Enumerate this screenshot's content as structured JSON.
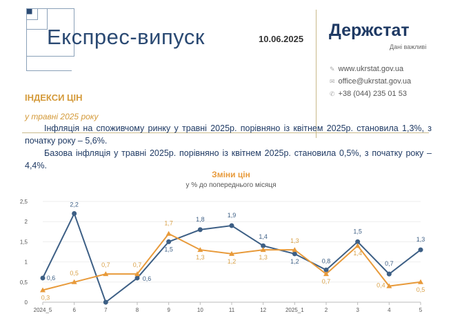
{
  "header": {
    "title": "Експрес-випуск",
    "date": "10.06.2025",
    "brand": "Держстат",
    "tagline": "Дані важливі",
    "section": "ІНДЕКСИ ЦІН",
    "period": "у травні 2025 року",
    "contacts": [
      {
        "icon": "link-icon",
        "text": "www.ukrstat.gov.ua"
      },
      {
        "icon": "mail-icon",
        "text": "office@ukrstat.gov.ua"
      },
      {
        "icon": "phone-icon",
        "text": "+38 (044) 235 01 53"
      }
    ]
  },
  "body": {
    "p1": "Інфляція на споживчому ринку у травні 2025р. порівняно із квітнем 2025р. становила 1,3%, з початку року – 5,6%.",
    "p2": "Базова інфляція у травні 2025р. порівняно із квітнем 2025р. становила 0,5%, з початку року – 4,4%."
  },
  "chart_data": {
    "type": "line",
    "title": "Зміни цін",
    "subtitle": "у % до попереднього місяця",
    "categories": [
      "2024_5",
      "6",
      "7",
      "8",
      "9",
      "10",
      "11",
      "12",
      "2025_1",
      "2",
      "3",
      "4",
      "5"
    ],
    "ylim": [
      0,
      2.5
    ],
    "yticks": [
      "0",
      "0,5",
      "1",
      "1,5",
      "2",
      "2,5"
    ],
    "grid": true,
    "series": [
      {
        "values": [
          0.6,
          2.2,
          0,
          0.6,
          1.5,
          1.8,
          1.9,
          1.4,
          1.2,
          0.8,
          1.5,
          0.7,
          1.3
        ],
        "color": "#3d5f85",
        "marker": "circle"
      },
      {
        "values": [
          0.3,
          0.5,
          0.7,
          0.7,
          1.7,
          1.3,
          1.2,
          1.3,
          1.3,
          0.7,
          1.4,
          0.4,
          0.5
        ],
        "color": "#e89a3a",
        "marker": "triangle"
      }
    ]
  }
}
